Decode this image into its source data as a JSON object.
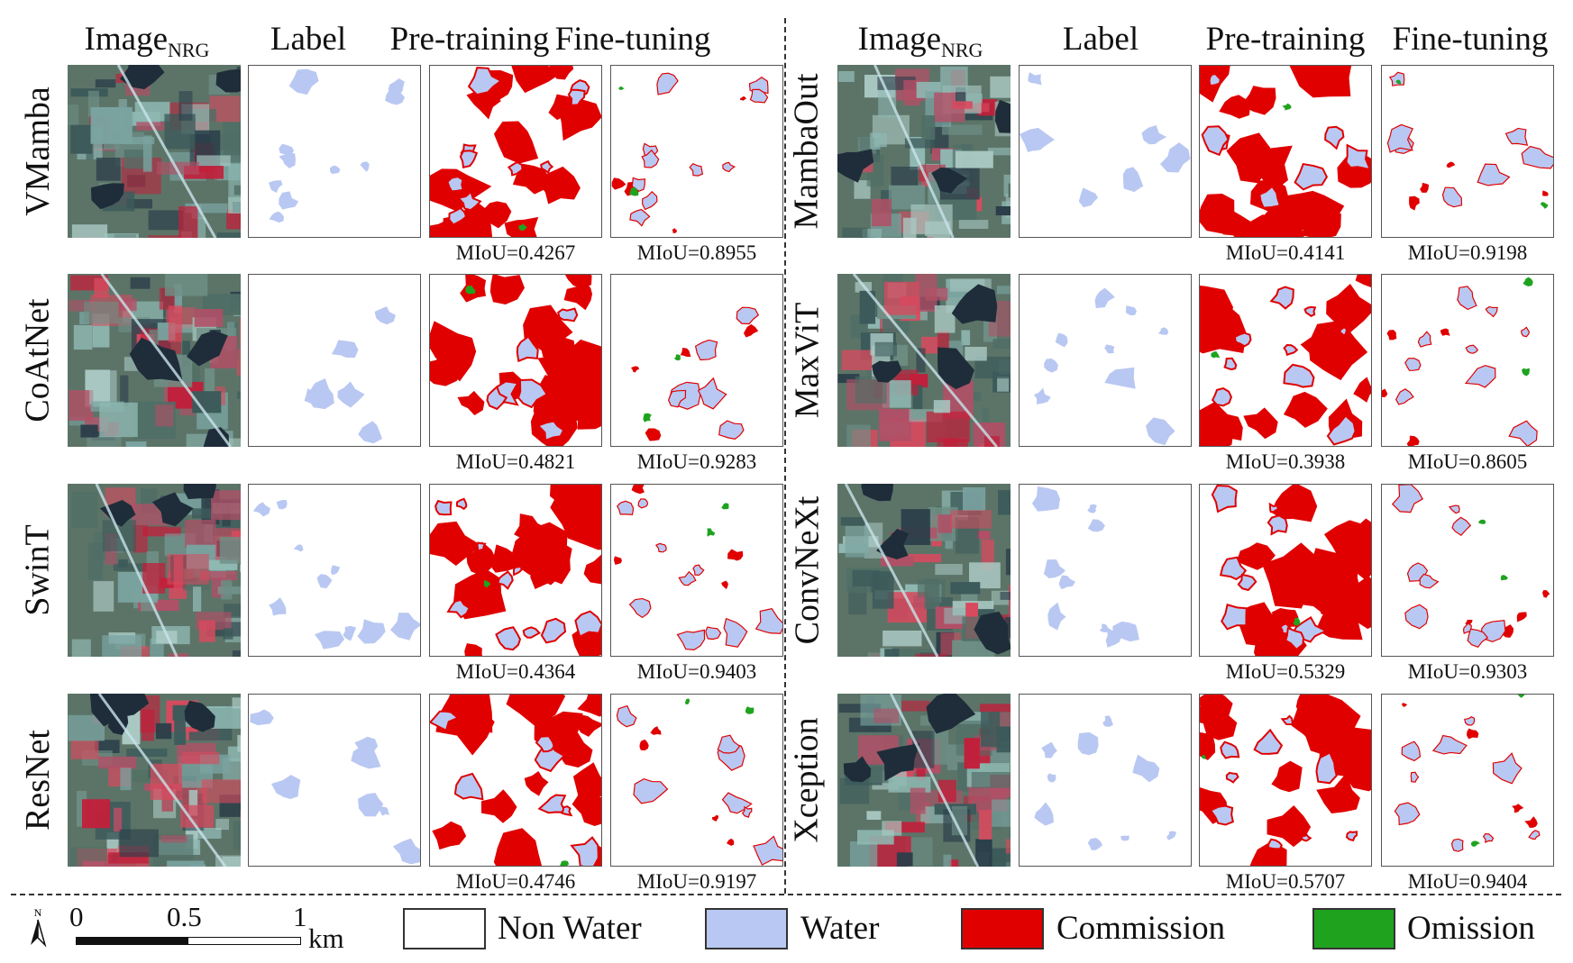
{
  "columns": {
    "image_main": "Image",
    "image_sub": "NRG",
    "label": "Label",
    "pretraining": "Pre-training",
    "finetuning": "Fine-tuning"
  },
  "models": {
    "left": [
      {
        "name": "VMamba",
        "miou_pre": "MIoU=0.4267",
        "miou_fine": "MIoU=0.8955"
      },
      {
        "name": "CoAtNet",
        "miou_pre": "MIoU=0.4821",
        "miou_fine": "MIoU=0.9283"
      },
      {
        "name": "SwinT",
        "miou_pre": "MIoU=0.4364",
        "miou_fine": "MIoU=0.9403"
      },
      {
        "name": "ResNet",
        "miou_pre": "MIoU=0.4746",
        "miou_fine": "MIoU=0.9197"
      }
    ],
    "right": [
      {
        "name": "MambaOut",
        "miou_pre": "MIoU=0.4141",
        "miou_fine": "MIoU=0.9198"
      },
      {
        "name": "MaxViT",
        "miou_pre": "MIoU=0.3938",
        "miou_fine": "MIoU=0.8605"
      },
      {
        "name": "ConvNeXt",
        "miou_pre": "MIoU=0.5329",
        "miou_fine": "MIoU=0.9303"
      },
      {
        "name": "Xception",
        "miou_pre": "MIoU=0.5707",
        "miou_fine": "MIoU=0.9404"
      }
    ]
  },
  "legend": {
    "non_water": "Non Water",
    "water": "Water",
    "commission": "Commission",
    "omission": "Omission"
  },
  "scale": {
    "north": "N",
    "t0": "0",
    "t1": "0.5",
    "t2": "1",
    "unit": "km"
  },
  "colors": {
    "water": "#b9c8f2",
    "commission": "#e00000",
    "omission": "#1fa31f",
    "non_water": "#ffffff"
  }
}
